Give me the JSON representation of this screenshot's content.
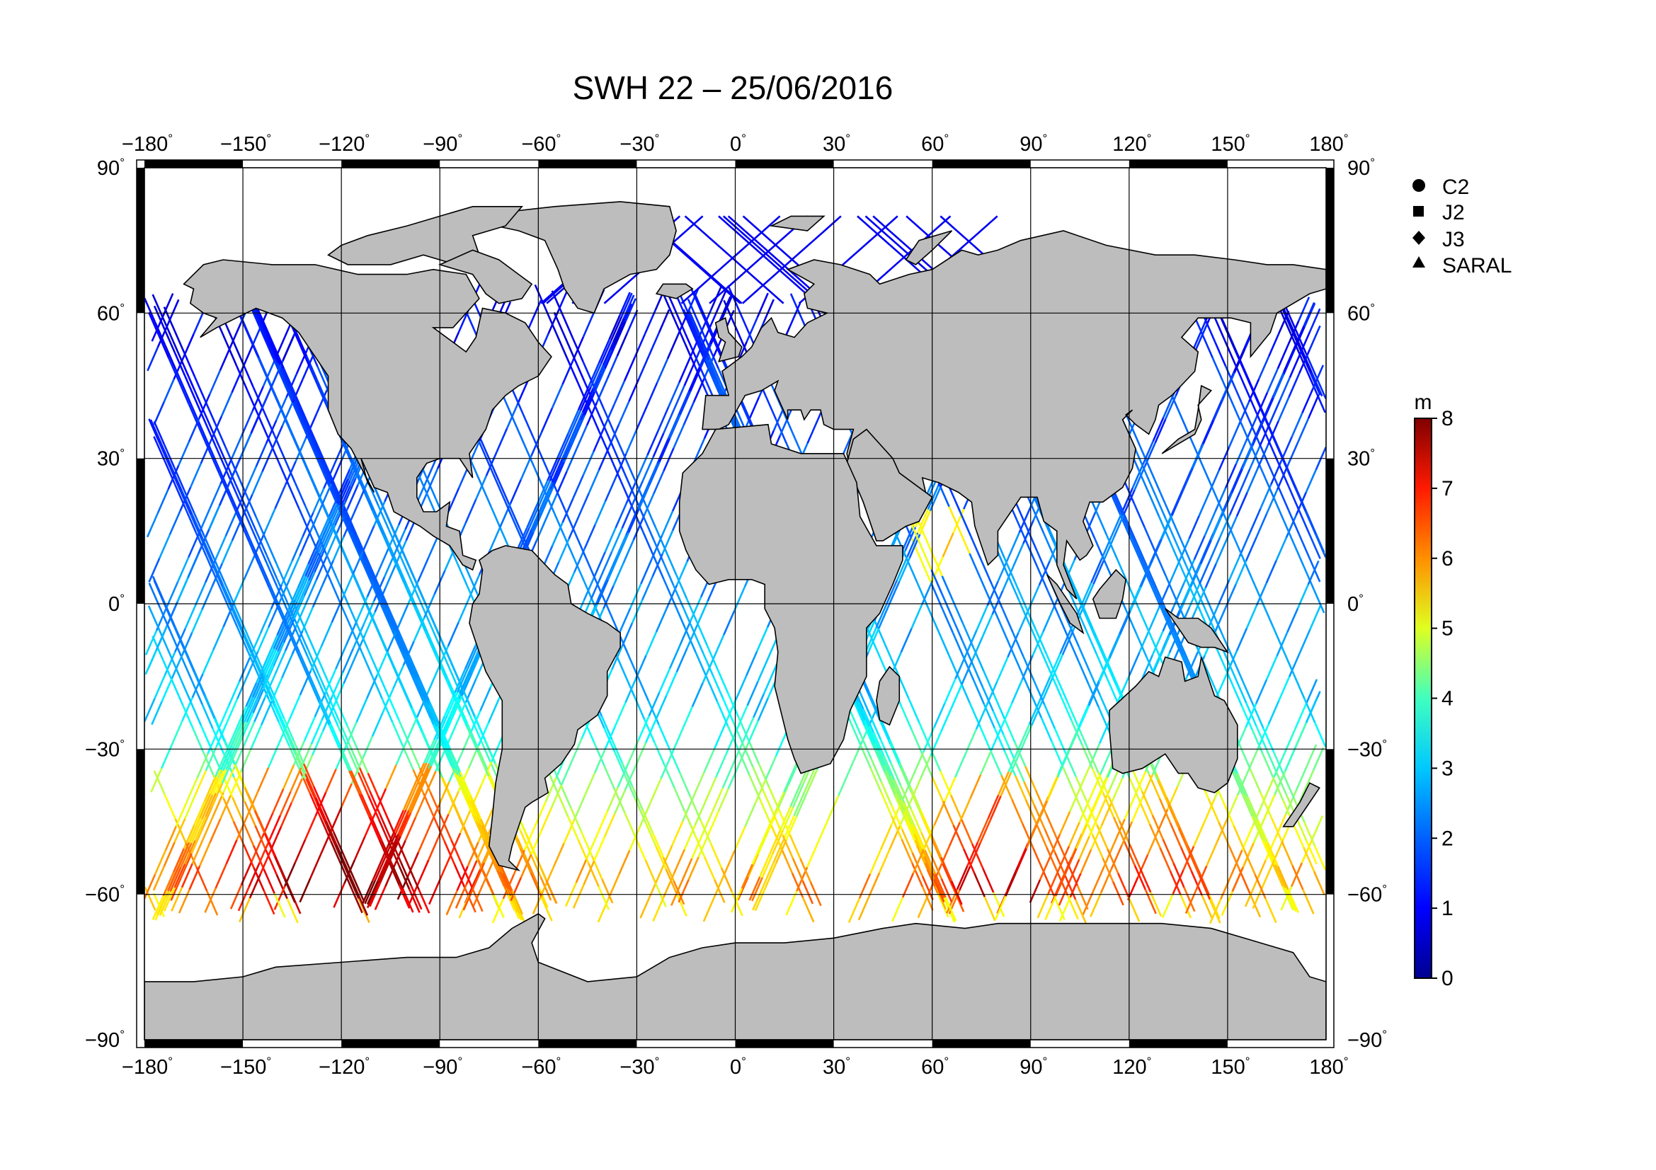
{
  "title": "SWH 22 – 25/06/2016",
  "axes": {
    "lon_ticks": [
      "−180",
      "−150",
      "−120",
      "−90",
      "−60",
      "−30",
      "0",
      "30",
      "60",
      "90",
      "120",
      "150",
      "180"
    ],
    "lat_ticks": [
      "90",
      "60",
      "30",
      "0",
      "−30",
      "−60",
      "−90"
    ],
    "degree_mark": "°",
    "lon_range": [
      -180,
      180
    ],
    "lat_range": [
      -90,
      90
    ]
  },
  "legend": {
    "placement": "top-right",
    "items": [
      {
        "label": "C2",
        "marker": "circle"
      },
      {
        "label": "J2",
        "marker": "square"
      },
      {
        "label": "J3",
        "marker": "diamond"
      },
      {
        "label": "SARAL",
        "marker": "triangle"
      }
    ]
  },
  "colorbar": {
    "unit": "m",
    "ticks": [
      "0",
      "1",
      "2",
      "3",
      "4",
      "5",
      "6",
      "7",
      "8"
    ],
    "range": [
      0,
      8
    ],
    "colormap": "jet"
  },
  "colors": {
    "land": "#bdbdbd",
    "coast": "#000000",
    "grid": "#000000",
    "background": "#ffffff"
  }
}
